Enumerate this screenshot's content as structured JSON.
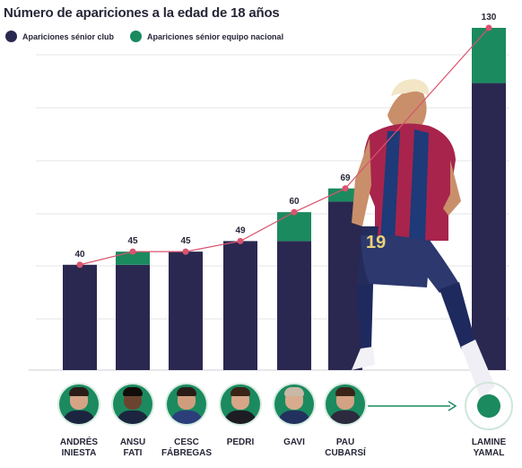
{
  "title": "Número de apariciones a la edad de 18 años",
  "legend": {
    "club": {
      "label": "Apariciones sénior club",
      "color": "#2a2850"
    },
    "national": {
      "label": "Apariciones sénior equipo nacional",
      "color": "#1b8a5f"
    }
  },
  "colors": {
    "club": "#2a2850",
    "national": "#1b8a5f",
    "line": "#d9536e",
    "arrow": "#1b8a5f"
  },
  "chart_data": {
    "type": "bar",
    "stacked": true,
    "ylim": [
      0,
      130
    ],
    "grid": true,
    "legend_position": "top-left",
    "categories": [
      [
        "ANDRÉS",
        "INIESTA"
      ],
      [
        "ANSU",
        "FATI"
      ],
      [
        "CESC",
        "FÁBREGAS"
      ],
      [
        "PEDRI"
      ],
      [
        "GAVI"
      ],
      [
        "PAU",
        "CUBARSÍ"
      ],
      [
        "LAMINE",
        "YAMAL"
      ]
    ],
    "series": [
      {
        "name": "Apariciones sénior club",
        "values": [
          40,
          40,
          45,
          49,
          49,
          64,
          109
        ]
      },
      {
        "name": "Apariciones sénior equipo nacional",
        "values": [
          0,
          5,
          0,
          0,
          11,
          5,
          21
        ]
      }
    ],
    "totals": [
      40,
      45,
      45,
      49,
      60,
      69,
      130
    ],
    "photo": {
      "description": "player-photo",
      "icon": "soccer-player-photo"
    }
  }
}
